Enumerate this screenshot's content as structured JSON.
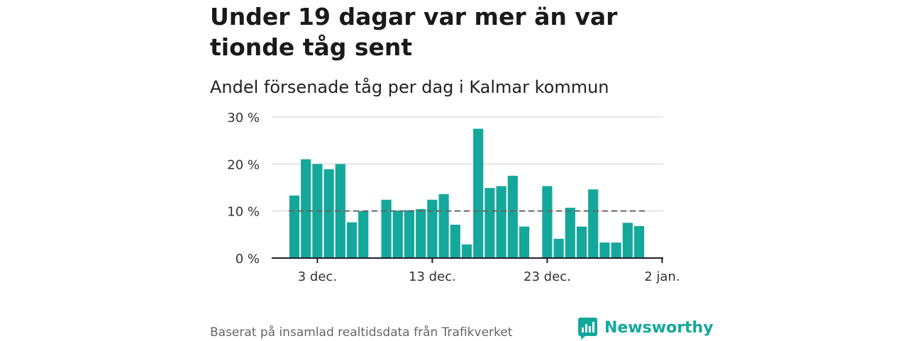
{
  "header": {
    "title": "Under 19 dagar var mer än var tionde tåg sent",
    "subtitle": "Andel försenade tåg per dag i Kalmar kommun"
  },
  "footer": {
    "source": "Baserat på insamlad realtidsdata från Trafikverket",
    "brand": "Newsworthy"
  },
  "colors": {
    "bar": "#14a89b",
    "reference_line": "#666666",
    "grid": "#dddddd",
    "axis": "#222222",
    "brand": "#12a89a"
  },
  "chart_data": {
    "type": "bar",
    "x_start_day": 1,
    "x": [
      1,
      2,
      3,
      4,
      5,
      6,
      7,
      8,
      9,
      10,
      11,
      12,
      13,
      14,
      15,
      16,
      17,
      18,
      19,
      20,
      21,
      22,
      23,
      24,
      25,
      26,
      27,
      28,
      29,
      30,
      31
    ],
    "values": [
      13.3,
      21.0,
      20.0,
      18.9,
      20.0,
      7.6,
      10.0,
      null,
      12.4,
      10.1,
      10.2,
      10.4,
      12.4,
      13.6,
      7.1,
      2.9,
      27.5,
      14.9,
      15.3,
      17.5,
      6.7,
      null,
      15.3,
      4.1,
      10.7,
      6.7,
      14.6,
      3.3,
      3.3,
      7.5,
      6.8
    ],
    "reference_value": 10,
    "ylim": [
      0,
      30
    ],
    "yticks": [
      0,
      10,
      20,
      30
    ],
    "ytick_labels": [
      "0 %",
      "10 %",
      "20 %",
      "30 %"
    ],
    "xticks": [
      {
        "day": 3,
        "label": "3 dec."
      },
      {
        "day": 13,
        "label": "13 dec."
      },
      {
        "day": 23,
        "label": "23 dec."
      },
      {
        "day": 33,
        "label": "2 jan."
      }
    ],
    "grid": true,
    "title": "",
    "xlabel": "",
    "ylabel": ""
  }
}
